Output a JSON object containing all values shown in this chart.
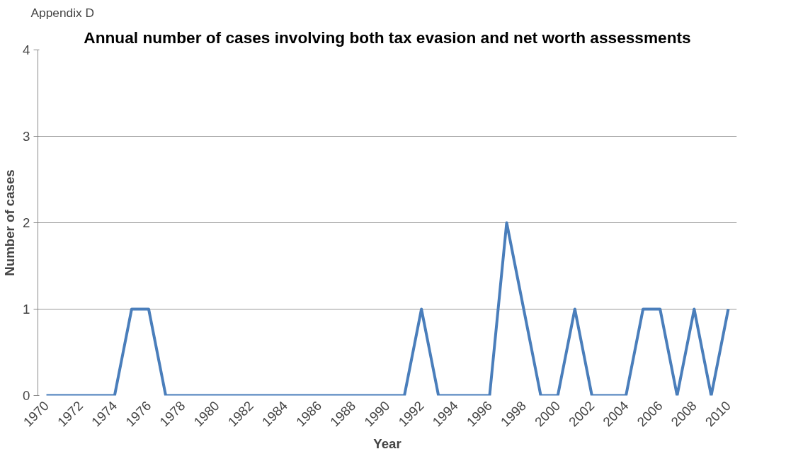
{
  "chart_data": {
    "type": "line",
    "title": "Annual number of cases involving both tax evasion and net worth assessments",
    "xlabel": "Year",
    "ylabel": "Number of cases",
    "annotations": [
      "Appendix D"
    ],
    "categories": [
      "1970",
      null,
      "1972",
      null,
      "1974",
      null,
      "1976",
      null,
      "1978",
      null,
      "1980",
      null,
      "1982",
      null,
      "1984",
      null,
      "1986",
      null,
      "1988",
      null,
      "1990",
      null,
      "1992",
      null,
      "1994",
      null,
      "1996",
      null,
      "1998",
      null,
      "2000",
      null,
      "2002",
      null,
      "2004",
      null,
      "2006",
      null,
      "2008",
      null,
      "2010"
    ],
    "series": [
      {
        "color": "#4a7ebb",
        "values": [
          0,
          0,
          0,
          0,
          0,
          1,
          1,
          0,
          0,
          0,
          0,
          0,
          0,
          0,
          0,
          0,
          0,
          0,
          0,
          0,
          0,
          0,
          1,
          0,
          0,
          0,
          0,
          2,
          1,
          0,
          0,
          1,
          0,
          0,
          0,
          1,
          1,
          0,
          1,
          0,
          1
        ]
      }
    ],
    "ylim": [
      0,
      4
    ],
    "yticks": [
      0,
      1,
      2,
      3,
      4
    ],
    "grid": "y",
    "marker": "none",
    "line_style": "solid"
  }
}
